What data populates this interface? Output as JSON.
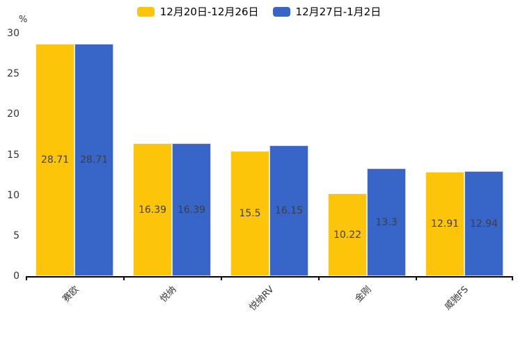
{
  "chart_data": {
    "type": "bar",
    "title": "",
    "xlabel": "",
    "ylabel": "%",
    "ylim": [
      0,
      30
    ],
    "yticks": [
      0,
      5,
      10,
      15,
      20,
      25,
      30
    ],
    "grid": false,
    "legend_position": "top-center",
    "value_labels": "inside-center",
    "x_label_rotation": 45,
    "categories": [
      "赛欧",
      "悦纳",
      "悦纳RV",
      "金刚",
      "威驰FS"
    ],
    "series": [
      {
        "name": "12月20日-12月26日",
        "color": "#FCC50A",
        "values": [
          28.71,
          16.39,
          15.5,
          10.22,
          12.91
        ]
      },
      {
        "name": "12月27日-1月2日",
        "color": "#3866C8",
        "values": [
          28.71,
          16.39,
          16.15,
          13.3,
          12.94
        ]
      }
    ]
  },
  "colors": {
    "axis": "#000000",
    "tick_label": "#333333",
    "value_label": "#3d3d3d",
    "background": "#ffffff"
  }
}
